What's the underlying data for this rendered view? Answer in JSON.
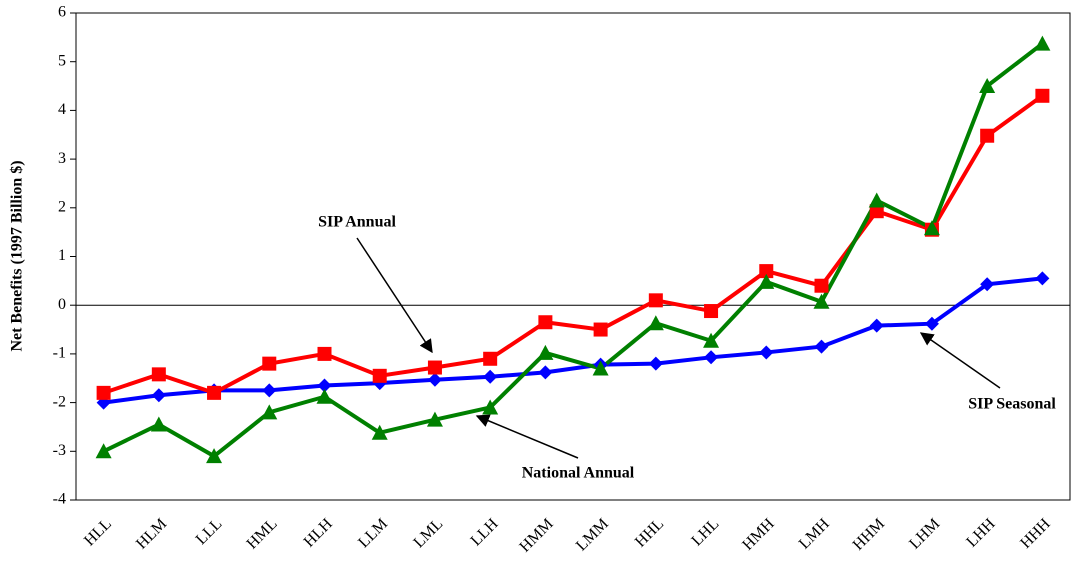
{
  "chart_data": {
    "type": "line",
    "y_label": "Net Benefits (1997 Billion $)",
    "categories": [
      "HLL",
      "HLM",
      "LLL",
      "HML",
      "HLH",
      "LLM",
      "LML",
      "LLH",
      "HMM",
      "LMM",
      "HHL",
      "LHL",
      "HMH",
      "LMH",
      "HHM",
      "LHM",
      "LHH",
      "HHH"
    ],
    "series": [
      {
        "name": "SIP Seasonal",
        "color": "#0000ff",
        "marker": "diamond",
        "values": [
          -2.0,
          -1.85,
          -1.75,
          -1.75,
          -1.65,
          -1.6,
          -1.53,
          -1.47,
          -1.38,
          -1.22,
          -1.2,
          -1.07,
          -0.97,
          -0.85,
          -0.42,
          -0.38,
          0.43,
          0.55
        ]
      },
      {
        "name": "SIP Annual",
        "color": "#ff0000",
        "marker": "square",
        "values": [
          -1.8,
          -1.42,
          -1.8,
          -1.2,
          -1.0,
          -1.45,
          -1.28,
          -1.1,
          -0.35,
          -0.5,
          0.1,
          -0.12,
          0.7,
          0.4,
          1.93,
          1.55,
          3.48,
          4.3
        ]
      },
      {
        "name": "National Annual",
        "color": "#008000",
        "marker": "triangle",
        "values": [
          -3.0,
          -2.45,
          -3.1,
          -2.2,
          -1.88,
          -2.62,
          -2.35,
          -2.1,
          -0.98,
          -1.3,
          -0.37,
          -0.73,
          0.48,
          0.07,
          2.15,
          1.58,
          4.5,
          5.37
        ]
      }
    ],
    "ylim": [
      -4,
      6
    ],
    "yticks": [
      -4,
      -3,
      -2,
      -1,
      0,
      1,
      2,
      3,
      4,
      5,
      6
    ]
  }
}
